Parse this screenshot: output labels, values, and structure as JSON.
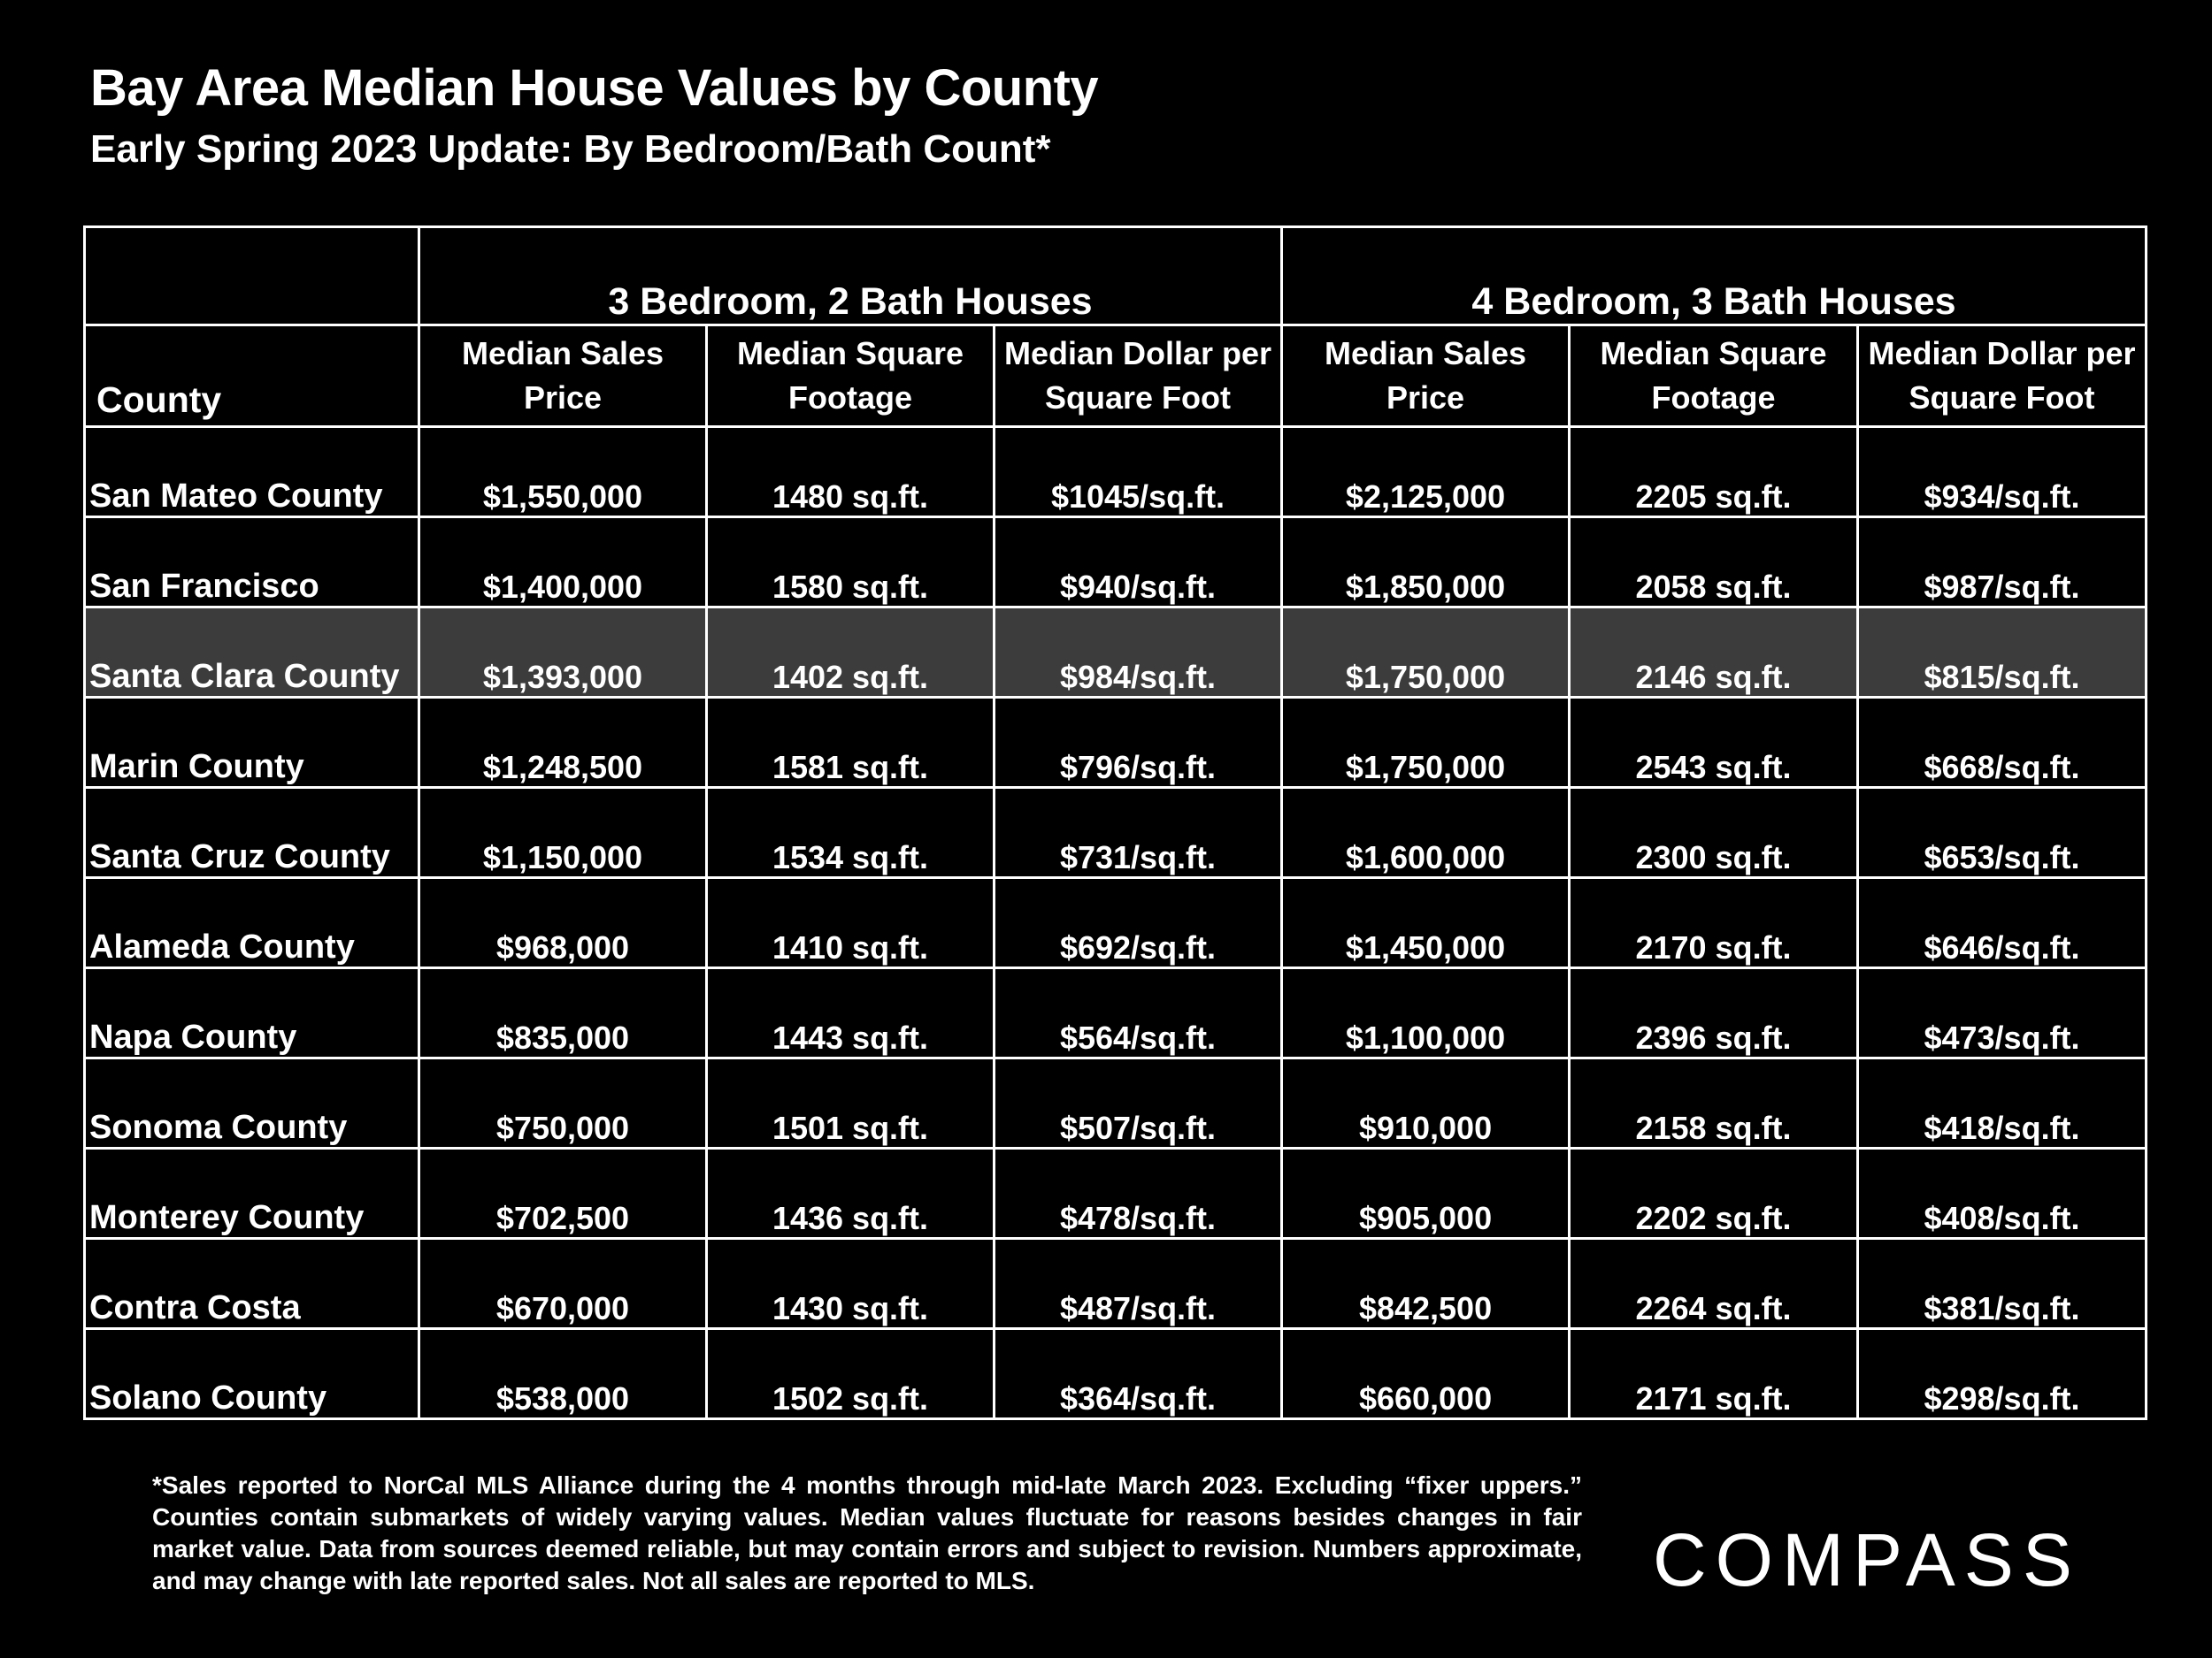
{
  "title": "Bay Area Median House Values by County",
  "subtitle": "Early Spring 2023 Update:  By Bedroom/Bath Count*",
  "table": {
    "group_headers": [
      "3 Bedroom, 2 Bath Houses",
      "4 Bedroom, 3 Bath Houses"
    ],
    "county_header": "County",
    "col_headers": [
      "Median Sales Price",
      "Median Square Footage",
      "Median Dollar per Square Foot",
      "Median Sales Price",
      "Median Square Footage",
      "Median Dollar per Square Foot"
    ],
    "rows": [
      [
        "San Mateo County",
        "$1,550,000",
        "1480 sq.ft.",
        "$1045/sq.ft.",
        "$2,125,000",
        "2205 sq.ft.",
        "$934/sq.ft."
      ],
      [
        "San Francisco",
        "$1,400,000",
        "1580 sq.ft.",
        "$940/sq.ft.",
        "$1,850,000",
        "2058 sq.ft.",
        "$987/sq.ft."
      ],
      [
        "Santa Clara County",
        "$1,393,000",
        "1402 sq.ft.",
        "$984/sq.ft.",
        "$1,750,000",
        "2146 sq.ft.",
        "$815/sq.ft."
      ],
      [
        "Marin County",
        "$1,248,500",
        "1581 sq.ft.",
        "$796/sq.ft.",
        "$1,750,000",
        "2543 sq.ft.",
        "$668/sq.ft."
      ],
      [
        "Santa Cruz County",
        "$1,150,000",
        "1534 sq.ft.",
        "$731/sq.ft.",
        "$1,600,000",
        "2300 sq.ft.",
        "$653/sq.ft."
      ],
      [
        "Alameda County",
        "$968,000",
        "1410 sq.ft.",
        "$692/sq.ft.",
        "$1,450,000",
        "2170 sq.ft.",
        "$646/sq.ft."
      ],
      [
        "Napa County",
        "$835,000",
        "1443 sq.ft.",
        "$564/sq.ft.",
        "$1,100,000",
        "2396 sq.ft.",
        "$473/sq.ft."
      ],
      [
        "Sonoma County",
        "$750,000",
        "1501 sq.ft.",
        "$507/sq.ft.",
        "$910,000",
        "2158 sq.ft.",
        "$418/sq.ft."
      ],
      [
        "Monterey County",
        "$702,500",
        "1436 sq.ft.",
        "$478/sq.ft.",
        "$905,000",
        "2202 sq.ft.",
        "$408/sq.ft."
      ],
      [
        "Contra Costa",
        "$670,000",
        "1430 sq.ft.",
        "$487/sq.ft.",
        "$842,500",
        "2264 sq.ft.",
        "$381/sq.ft."
      ],
      [
        "Solano County",
        "$538,000",
        "1502 sq.ft.",
        "$364/sq.ft.",
        "$660,000",
        "2171 sq.ft.",
        "$298/sq.ft."
      ]
    ],
    "highlight_row": "Santa Clara County",
    "highlight_color": "#3c3c3c"
  },
  "footnote": "*Sales reported to NorCal MLS Alliance during the 4 months through mid-late March 2023. Excluding “fixer uppers.” Counties contain submarkets of widely varying values. Median values fluctuate for reasons besides changes in fair market value. Data from sources deemed reliable, but may contain errors and subject to revision.  Numbers approximate, and may change with late reported sales. Not all sales are reported to MLS.",
  "logo": "COMPASS",
  "colors": {
    "background": "#000000",
    "text": "#ffffff",
    "grid": "#ffffff"
  }
}
